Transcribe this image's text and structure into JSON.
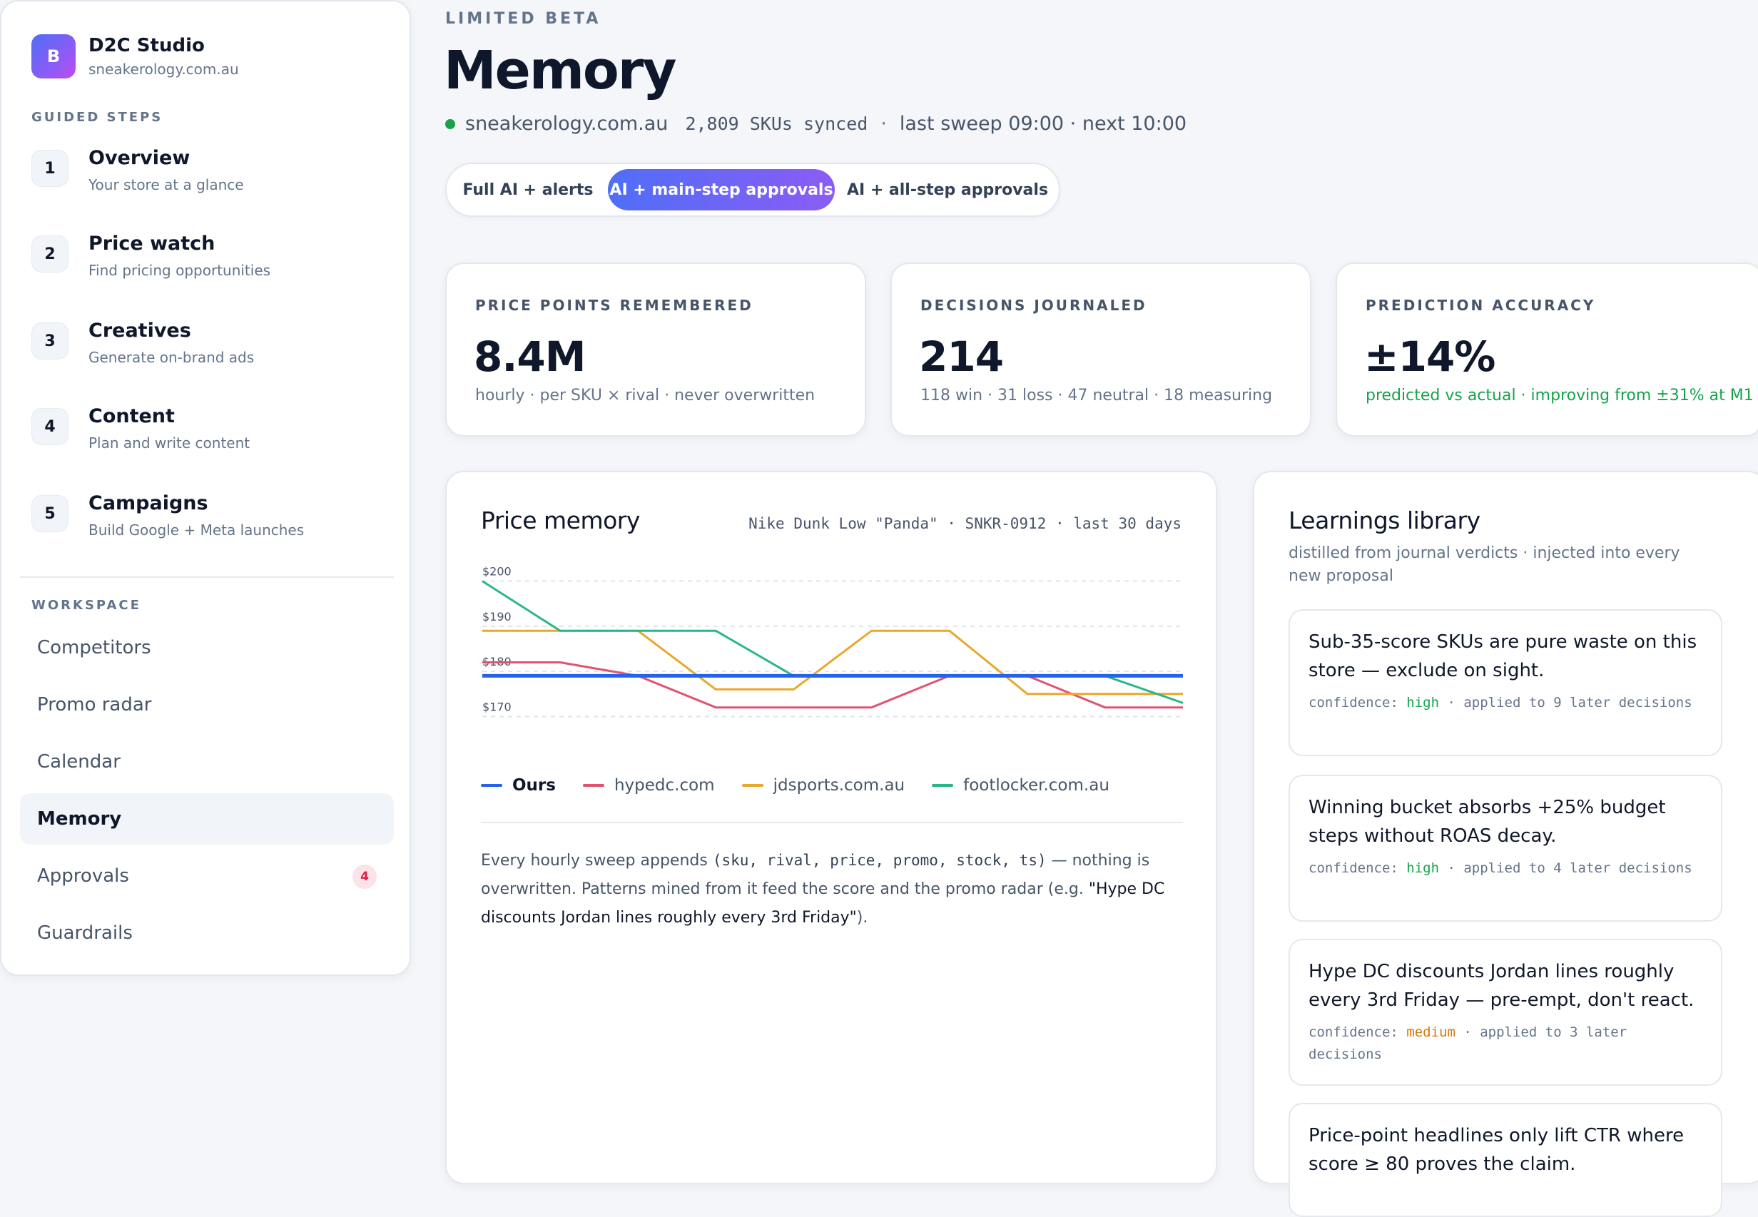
{
  "brand": {
    "logo_letter": "B",
    "name": "D2C Studio",
    "domain": "sneakerology.com.au"
  },
  "guided_steps": {
    "title": "GUIDED STEPS",
    "items": [
      {
        "num": "1",
        "title": "Overview",
        "sub": "Your store at a glance"
      },
      {
        "num": "2",
        "title": "Price watch",
        "sub": "Find pricing opportunities"
      },
      {
        "num": "3",
        "title": "Creatives",
        "sub": "Generate on-brand ads"
      },
      {
        "num": "4",
        "title": "Content",
        "sub": "Plan and write content"
      },
      {
        "num": "5",
        "title": "Campaigns",
        "sub": "Build Google + Meta launches"
      }
    ]
  },
  "workspace": {
    "title": "WORKSPACE",
    "items": [
      {
        "label": "Competitors"
      },
      {
        "label": "Promo radar"
      },
      {
        "label": "Calendar"
      },
      {
        "label": "Memory",
        "active": true
      },
      {
        "label": "Approvals",
        "badge": "4"
      },
      {
        "label": "Guardrails"
      }
    ]
  },
  "header": {
    "eyebrow": "LIMITED BETA",
    "title": "Memory",
    "domain": "sneakerology.com.au",
    "skus": "2,809 SKUs synced",
    "sep": "·",
    "sweep": "last sweep 09:00 · next 10:00"
  },
  "modes": {
    "options": [
      "Full AI + alerts",
      "AI + main-step approvals",
      "AI + all-step approvals"
    ],
    "selected": "AI + main-step approvals"
  },
  "stats": [
    {
      "label": "PRICE POINTS REMEMBERED",
      "value": "8.4M",
      "sub": "hourly · per SKU × rival · never overwritten"
    },
    {
      "label": "DECISIONS JOURNALED",
      "value": "214",
      "sub": "118 win · 31 loss · 47 neutral · 18 measuring"
    },
    {
      "label": "PREDICTION ACCURACY",
      "value": "±14%",
      "sub": "predicted vs actual · improving from ±31% at M1"
    }
  ],
  "price_memory": {
    "title": "Price memory",
    "meta": "Nike Dunk Low \"Panda\" · SNKR-0912 · last 30 days",
    "desc_1": "Every hourly sweep appends ",
    "desc_code": "(sku, rival, price, promo, stock, ts)",
    "desc_2": " — nothing is overwritten. Patterns mined from it feed the score and the promo radar (e.g. ",
    "desc_quote": "\"Hype DC discounts Jordan lines roughly every 3rd Friday\"",
    "desc_3": ")."
  },
  "chart_data": {
    "type": "line",
    "x": [
      0,
      1,
      2,
      3,
      4,
      5,
      6,
      7,
      8,
      9
    ],
    "ylim": [
      168,
      202
    ],
    "y_ticks": [
      200,
      190,
      180,
      170
    ],
    "y_tick_labels": [
      "$200",
      "$190",
      "$180",
      "$170"
    ],
    "grid": true,
    "legend_position": "bottom-left",
    "series": [
      {
        "name": "Ours",
        "color": "#2563eb",
        "values": [
          179,
          179,
          179,
          179,
          179,
          179,
          179,
          179,
          179,
          179
        ]
      },
      {
        "name": "hypedc.com",
        "color": "#e05470",
        "values": [
          182,
          182,
          179,
          172,
          172,
          172,
          179,
          179,
          172,
          172
        ]
      },
      {
        "name": "jdsports.com.au",
        "color": "#eaa72d",
        "values": [
          189,
          189,
          189,
          176,
          176,
          189,
          189,
          175,
          175,
          175
        ]
      },
      {
        "name": "footlocker.com.au",
        "color": "#2bb68a",
        "values": [
          200,
          189,
          189,
          189,
          179,
          179,
          179,
          179,
          179,
          173
        ]
      }
    ]
  },
  "learnings": {
    "title": "Learnings library",
    "sub": "distilled from journal verdicts · injected into every new proposal",
    "conf_prefix": "confidence: ",
    "items": [
      {
        "title": "Sub-35-score SKUs are pure waste on this store — exclude on sight.",
        "confidence": "high",
        "applied": " · applied to 9 later decisions"
      },
      {
        "title": "Winning bucket absorbs +25% budget steps without ROAS decay.",
        "confidence": "high",
        "applied": " · applied to 4 later decisions"
      },
      {
        "title": "Hype DC discounts Jordan lines roughly every 3rd Friday — pre-empt, don't react.",
        "confidence": "medium",
        "applied": " · applied to 3 later decisions"
      },
      {
        "title": "Price-point headlines only lift CTR where score ≥ 80 proves the claim."
      }
    ]
  }
}
